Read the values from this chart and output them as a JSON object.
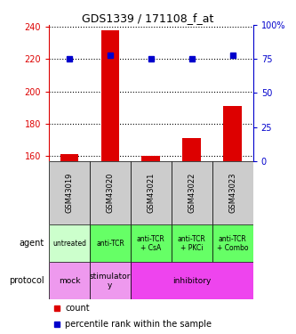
{
  "title": "GDS1339 / 171108_f_at",
  "samples": [
    "GSM43019",
    "GSM43020",
    "GSM43021",
    "GSM43022",
    "GSM43023"
  ],
  "counts": [
    161,
    238,
    160,
    171,
    191
  ],
  "percentile_ranks": [
    75,
    78,
    75,
    75,
    78
  ],
  "ylim_left": [
    157,
    241
  ],
  "ylim_right": [
    0,
    100
  ],
  "yticks_left": [
    160,
    180,
    200,
    220,
    240
  ],
  "yticks_right": [
    0,
    25,
    50,
    75,
    100
  ],
  "agent_labels": [
    "untreated",
    "anti-TCR",
    "anti-TCR\n+ CsA",
    "anti-TCR\n+ PKCi",
    "anti-TCR\n+ Combo"
  ],
  "protocol_labels": [
    "mock",
    "stimulator\ny",
    "inhibitory"
  ],
  "agent_color_untreated": "#ccffcc",
  "agent_color_tcr": "#66ff66",
  "protocol_color_mock": "#ee99ee",
  "protocol_color_stimulatory": "#ee99ee",
  "protocol_color_inhibitory": "#ee44ee",
  "sample_bg": "#cccccc",
  "bar_color": "#dd0000",
  "dot_color": "#0000cc",
  "legend_count_color": "#dd0000",
  "legend_pct_color": "#0000cc",
  "left_tick_color": "#dd0000",
  "right_tick_color": "#0000cc",
  "title_fontsize": 9,
  "tick_fontsize": 7,
  "sample_fontsize": 6,
  "agent_fontsize": 5.5,
  "protocol_fontsize": 6.5,
  "label_fontsize": 7,
  "legend_fontsize": 7
}
